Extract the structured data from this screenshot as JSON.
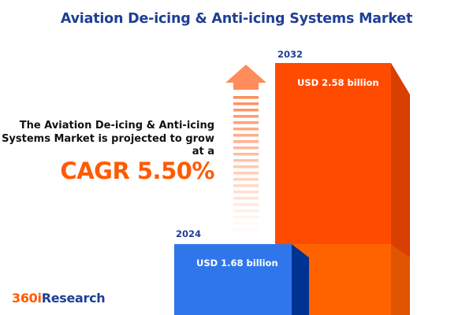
{
  "title": "Aviation De-icing & Anti-icing Systems Market",
  "description": "The Aviation De-icing & Anti-icing Systems Market is projected to grow at a",
  "cagr_label": "CAGR 5.50%",
  "logo": {
    "part1": "360i",
    "part2": "Research"
  },
  "colors": {
    "bar_2024": "#2f76eb",
    "bar_2024_side": "#003391",
    "bar_2032": "#ff4b00",
    "bar_2032_side": "#d93f00",
    "overlap": "#ff6300",
    "arrow": "#ff8c5a",
    "title": "#1f3f94",
    "accent": "#ff5a00"
  },
  "chart_data": {
    "type": "bar",
    "categories": [
      "2024",
      "2032"
    ],
    "values": [
      1.68,
      2.58
    ],
    "data_labels": [
      "USD 1.68 billion",
      "USD 2.58 billion"
    ],
    "unit": "USD billion",
    "annotation": "CAGR 5.50%"
  }
}
